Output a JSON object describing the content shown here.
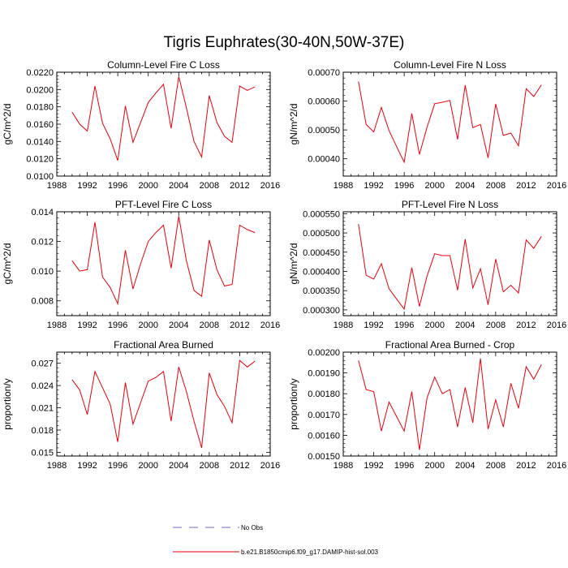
{
  "figure": {
    "title": "Tigris Euphrates(30-40N,50W-37E)",
    "legend": [
      {
        "label": "No Obs",
        "color": "#6b6bd6",
        "style": "dashed"
      },
      {
        "label": "b.e21.B1850cmip6.f09_g17.DAMIP-hist-sol.003",
        "color": "#e8000b",
        "style": "solid"
      }
    ]
  },
  "chart_data": [
    {
      "type": "line",
      "title": "Column-Level Fire C Loss",
      "ylabel": "gC/m^2/d",
      "xlim": [
        1988,
        2016
      ],
      "ylim": [
        0.01,
        0.022
      ],
      "xticks": [
        "1988",
        "1992",
        "1996",
        "2000",
        "2004",
        "2008",
        "2012",
        "2016"
      ],
      "yticks": [
        "0.0100",
        "0.0120",
        "0.0140",
        "0.0160",
        "0.0180",
        "0.0200",
        "0.0220"
      ],
      "x": [
        1990,
        1991,
        1992,
        1993,
        1994,
        1995,
        1996,
        1997,
        1998,
        1999,
        2000,
        2001,
        2002,
        2003,
        2004,
        2005,
        2006,
        2007,
        2008,
        2009,
        2010,
        2011,
        2012,
        2013,
        2014
      ],
      "series": [
        {
          "color": "#e8000b",
          "values": [
            0.0174,
            0.016,
            0.0152,
            0.0204,
            0.0161,
            0.0143,
            0.0118,
            0.0181,
            0.0139,
            0.0162,
            0.0185,
            0.0196,
            0.0206,
            0.0155,
            0.0215,
            0.0179,
            0.014,
            0.0122,
            0.0193,
            0.0162,
            0.0146,
            0.0139,
            0.0204,
            0.0199,
            0.0203
          ]
        }
      ]
    },
    {
      "type": "line",
      "title": "Column-Level Fire N Loss",
      "ylabel": "gN/m^2/d",
      "xlim": [
        1988,
        2016
      ],
      "ylim": [
        0.00034,
        0.0007
      ],
      "xticks": [
        "1988",
        "1992",
        "1996",
        "2000",
        "2004",
        "2008",
        "2012",
        "2016"
      ],
      "yticks": [
        "0.00040",
        "0.00050",
        "0.00060",
        "0.00070"
      ],
      "x": [
        1990,
        1991,
        1992,
        1993,
        1994,
        1995,
        1996,
        1997,
        1998,
        1999,
        2000,
        2001,
        2002,
        2003,
        2004,
        2005,
        2006,
        2007,
        2008,
        2009,
        2010,
        2011,
        2012,
        2013,
        2014
      ],
      "series": [
        {
          "color": "#e8000b",
          "values": [
            0.000668,
            0.000519,
            0.000493,
            0.000578,
            0.000498,
            0.000442,
            0.000388,
            0.000557,
            0.000415,
            0.000509,
            0.000591,
            0.000596,
            0.000602,
            0.000467,
            0.000655,
            0.000508,
            0.000519,
            0.000403,
            0.00059,
            0.000481,
            0.000489,
            0.000445,
            0.000643,
            0.000616,
            0.000656
          ]
        }
      ]
    },
    {
      "type": "line",
      "title": "PFT-Level Fire C Loss",
      "ylabel": "gC/m^2/d",
      "xlim": [
        1988,
        2016
      ],
      "ylim": [
        0.007,
        0.014
      ],
      "xticks": [
        "1988",
        "1992",
        "1996",
        "2000",
        "2004",
        "2008",
        "2012",
        "2016"
      ],
      "yticks": [
        "0.008",
        "0.010",
        "0.012",
        "0.014"
      ],
      "x": [
        1990,
        1991,
        1992,
        1993,
        1994,
        1995,
        1996,
        1997,
        1998,
        1999,
        2000,
        2001,
        2002,
        2003,
        2004,
        2005,
        2006,
        2007,
        2008,
        2009,
        2010,
        2011,
        2012,
        2013,
        2014
      ],
      "series": [
        {
          "color": "#e8000b",
          "values": [
            0.0107,
            0.01,
            0.0101,
            0.0133,
            0.0096,
            0.0089,
            0.0078,
            0.0114,
            0.0088,
            0.0105,
            0.012,
            0.0126,
            0.0131,
            0.0102,
            0.0137,
            0.0107,
            0.0087,
            0.0083,
            0.0121,
            0.0101,
            0.009,
            0.0091,
            0.0131,
            0.0128,
            0.0126
          ]
        }
      ]
    },
    {
      "type": "line",
      "title": "PFT-Level Fire N Loss",
      "ylabel": "gN/m^2/d",
      "xlim": [
        1988,
        2016
      ],
      "ylim": [
        0.000285,
        0.000555
      ],
      "xticks": [
        "1988",
        "1992",
        "1996",
        "2000",
        "2004",
        "2008",
        "2012",
        "2016"
      ],
      "yticks": [
        "0.000300",
        "0.000350",
        "0.000400",
        "0.000450",
        "0.000500",
        "0.000550"
      ],
      "x": [
        1990,
        1991,
        1992,
        1993,
        1994,
        1995,
        1996,
        1997,
        1998,
        1999,
        2000,
        2001,
        2002,
        2003,
        2004,
        2005,
        2006,
        2007,
        2008,
        2009,
        2010,
        2011,
        2012,
        2013,
        2014
      ],
      "series": [
        {
          "color": "#e8000b",
          "values": [
            0.000523,
            0.00039,
            0.00038,
            0.00042,
            0.000355,
            0.000328,
            0.000302,
            0.00041,
            0.000309,
            0.000388,
            0.000446,
            0.000441,
            0.000441,
            0.000351,
            0.000484,
            0.000357,
            0.000407,
            0.000313,
            0.000432,
            0.000347,
            0.000364,
            0.000344,
            0.000482,
            0.00046,
            0.000491
          ]
        }
      ]
    },
    {
      "type": "line",
      "title": "Fractional Area Burned",
      "ylabel": "proportion/y",
      "xlim": [
        1988,
        2016
      ],
      "ylim": [
        0.0145,
        0.0285
      ],
      "xticks": [
        "1988",
        "1992",
        "1996",
        "2000",
        "2004",
        "2008",
        "2012",
        "2016"
      ],
      "yticks": [
        "0.015",
        "0.018",
        "0.021",
        "0.024",
        "0.027"
      ],
      "x": [
        1990,
        1991,
        1992,
        1993,
        1994,
        1995,
        1996,
        1997,
        1998,
        1999,
        2000,
        2001,
        2002,
        2003,
        2004,
        2005,
        2006,
        2007,
        2008,
        2009,
        2010,
        2011,
        2012,
        2013,
        2014
      ],
      "series": [
        {
          "color": "#e8000b",
          "values": [
            0.0248,
            0.0234,
            0.0201,
            0.0259,
            0.0237,
            0.0215,
            0.0164,
            0.0244,
            0.0188,
            0.0217,
            0.0246,
            0.0251,
            0.0259,
            0.0192,
            0.0265,
            0.0232,
            0.0192,
            0.0156,
            0.0257,
            0.0228,
            0.0212,
            0.019,
            0.0274,
            0.0265,
            0.0273
          ]
        }
      ]
    },
    {
      "type": "line",
      "title": "Fractional Area Burned - Crop",
      "ylabel": "proportion/y",
      "xlim": [
        1988,
        2016
      ],
      "ylim": [
        0.0015,
        0.002
      ],
      "xticks": [
        "1988",
        "1992",
        "1996",
        "2000",
        "2004",
        "2008",
        "2012",
        "2016"
      ],
      "yticks": [
        "0.00150",
        "0.00160",
        "0.00170",
        "0.00180",
        "0.00190",
        "0.00200"
      ],
      "x": [
        1990,
        1991,
        1992,
        1993,
        1994,
        1995,
        1996,
        1997,
        1998,
        1999,
        2000,
        2001,
        2002,
        2003,
        2004,
        2005,
        2006,
        2007,
        2008,
        2009,
        2010,
        2011,
        2012,
        2013,
        2014
      ],
      "series": [
        {
          "color": "#e8000b",
          "values": [
            0.00196,
            0.00182,
            0.00181,
            0.00162,
            0.00176,
            0.00169,
            0.00162,
            0.00181,
            0.00153,
            0.00178,
            0.00188,
            0.0018,
            0.00182,
            0.00164,
            0.00183,
            0.00166,
            0.00197,
            0.00163,
            0.00177,
            0.00164,
            0.00185,
            0.00173,
            0.00193,
            0.00187,
            0.00194
          ]
        }
      ]
    }
  ]
}
